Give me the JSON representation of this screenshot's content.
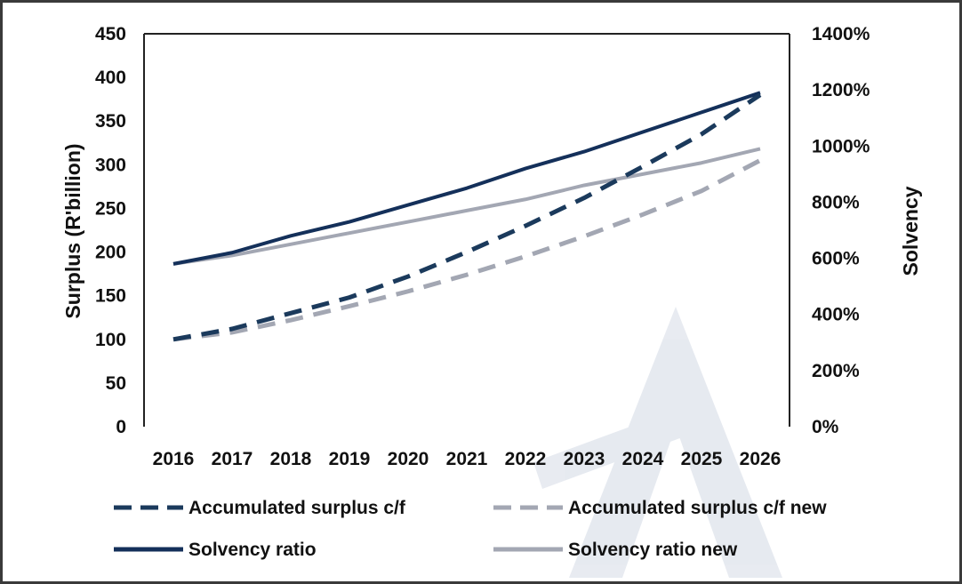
{
  "chart_data": {
    "type": "line",
    "x": [
      "2016",
      "2017",
      "2018",
      "2019",
      "2020",
      "2021",
      "2022",
      "2023",
      "2024",
      "2025",
      "2026"
    ],
    "series": [
      {
        "name": "Accumulated surplus c/f",
        "axis": "left",
        "style": "dashed",
        "color": "#1b3a5c",
        "values": [
          100,
          112,
          130,
          148,
          172,
          200,
          230,
          262,
          298,
          335,
          380
        ]
      },
      {
        "name": "Accumulated surplus c/f new",
        "axis": "left",
        "style": "dashed",
        "color": "#a3a7b3",
        "values": [
          100,
          108,
          122,
          138,
          155,
          174,
          195,
          218,
          243,
          270,
          305
        ]
      },
      {
        "name": "Solvency ratio",
        "axis": "right",
        "style": "solid",
        "color": "#14305a",
        "values": [
          580,
          620,
          680,
          730,
          790,
          850,
          920,
          980,
          1050,
          1120,
          1190
        ]
      },
      {
        "name": "Solvency ratio new",
        "axis": "right",
        "style": "solid",
        "color": "#a3a7b3",
        "values": [
          580,
          610,
          650,
          690,
          730,
          770,
          810,
          860,
          900,
          940,
          990
        ]
      }
    ],
    "ylabel": "Surplus (R'billion)",
    "y2label": "Solvency",
    "ylim": [
      0,
      450
    ],
    "y2lim": [
      0,
      1400
    ],
    "yticks": [
      "0",
      "50",
      "100",
      "150",
      "200",
      "250",
      "300",
      "350",
      "400",
      "450"
    ],
    "y2ticks": [
      "0%",
      "200%",
      "400%",
      "600%",
      "800%",
      "1000%",
      "1200%",
      "1400%"
    ],
    "grid": false,
    "legend_position": "bottom"
  }
}
